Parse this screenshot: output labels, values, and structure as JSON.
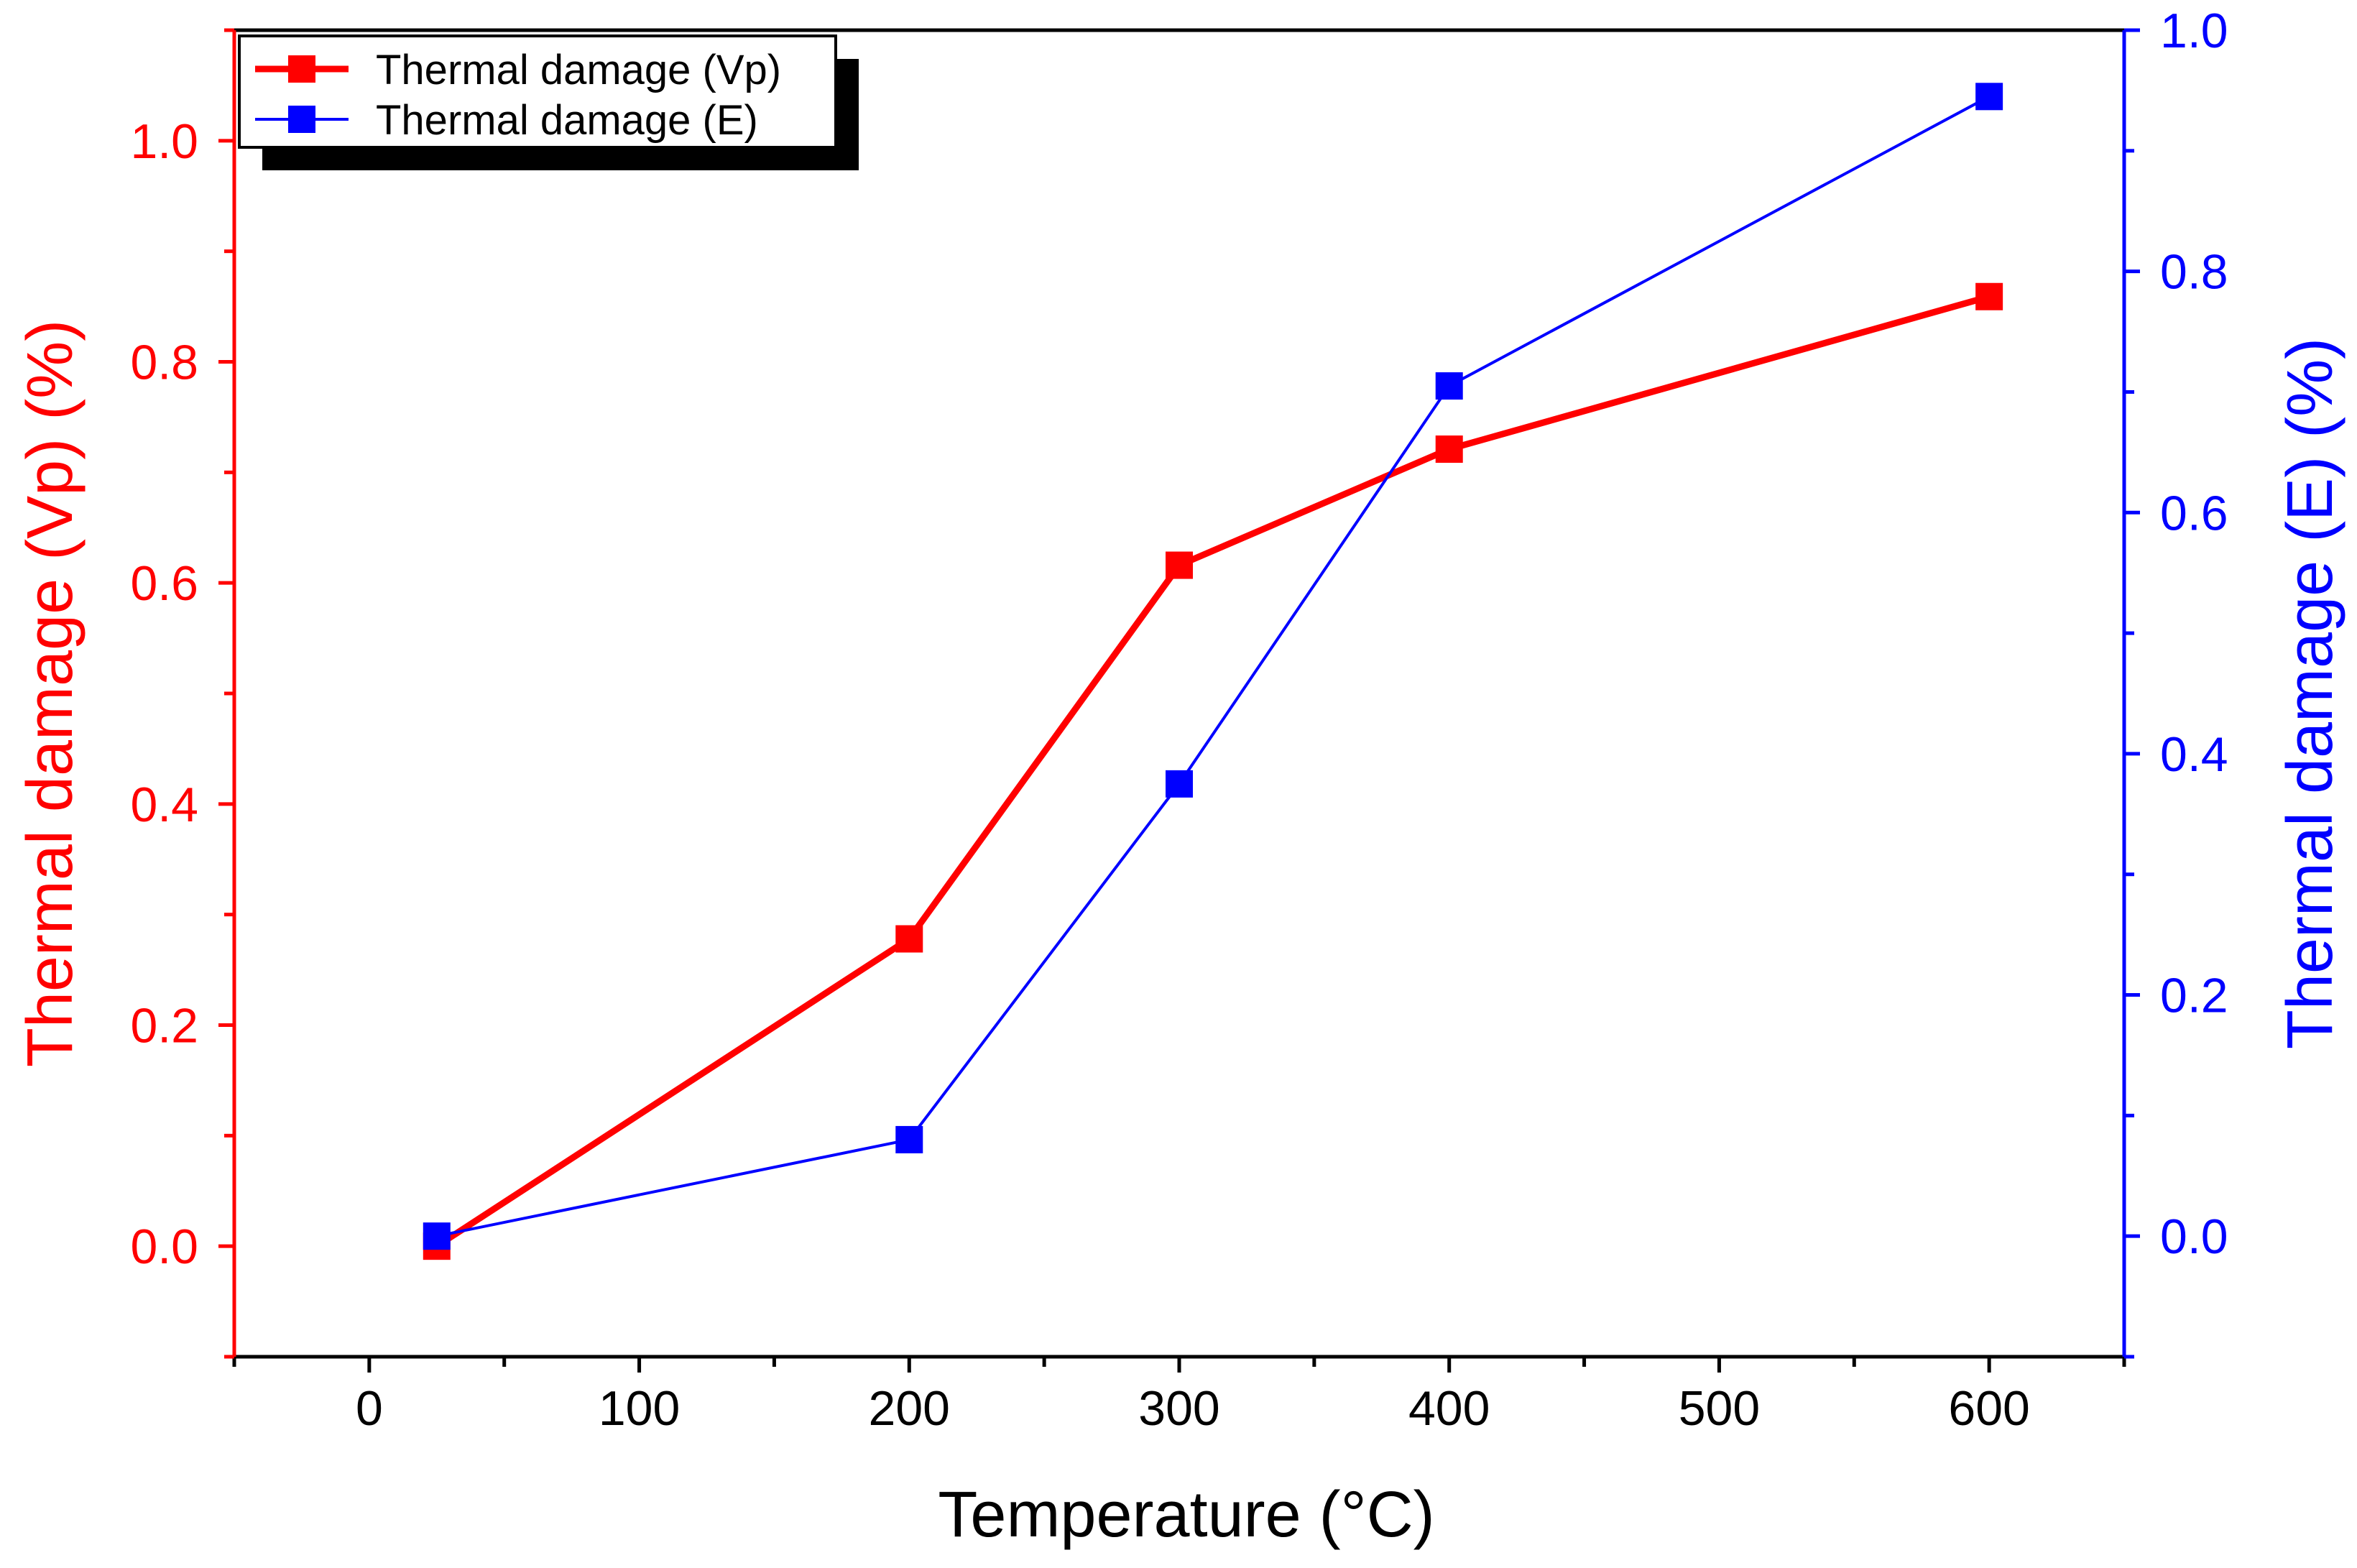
{
  "chart_data": {
    "type": "line",
    "xlabel": "Temperature (°C)",
    "ylabel_left": "Thermal damage (Vp) (%)",
    "ylabel_right": "Thermal damage (E) (%)",
    "xlim": [
      -50,
      650
    ],
    "ylim_left": [
      -0.1,
      1.1
    ],
    "ylim_right": [
      -0.1,
      1.0
    ],
    "xticks": [
      0,
      100,
      200,
      300,
      400,
      500,
      600
    ],
    "yticks_left": [
      0.0,
      0.2,
      0.4,
      0.6,
      0.8,
      1.0
    ],
    "yticks_right": [
      0.0,
      0.2,
      0.4,
      0.6,
      0.8,
      1.0
    ],
    "xtick_labels": [
      "0",
      "100",
      "200",
      "300",
      "400",
      "500",
      "600"
    ],
    "ytick_labels_left": [
      "0.0",
      "0.2",
      "0.4",
      "0.6",
      "0.8",
      "1.0"
    ],
    "ytick_labels_right": [
      "0.0",
      "0.2",
      "0.4",
      "0.6",
      "0.8",
      "1.0"
    ],
    "legend_position": "top-left",
    "grid": false,
    "series": [
      {
        "name": "Thermal damage (Vp)",
        "axis": "left",
        "color": "#ff0000",
        "marker": "square",
        "x": [
          25,
          200,
          300,
          400,
          600
        ],
        "y": [
          0.0,
          0.278,
          0.616,
          0.721,
          0.859
        ]
      },
      {
        "name": "Thermal damage (E)",
        "axis": "right",
        "color": "#0000ff",
        "marker": "square",
        "x": [
          25,
          200,
          300,
          400,
          600
        ],
        "y": [
          0.0,
          0.08,
          0.375,
          0.705,
          0.945
        ]
      }
    ]
  }
}
